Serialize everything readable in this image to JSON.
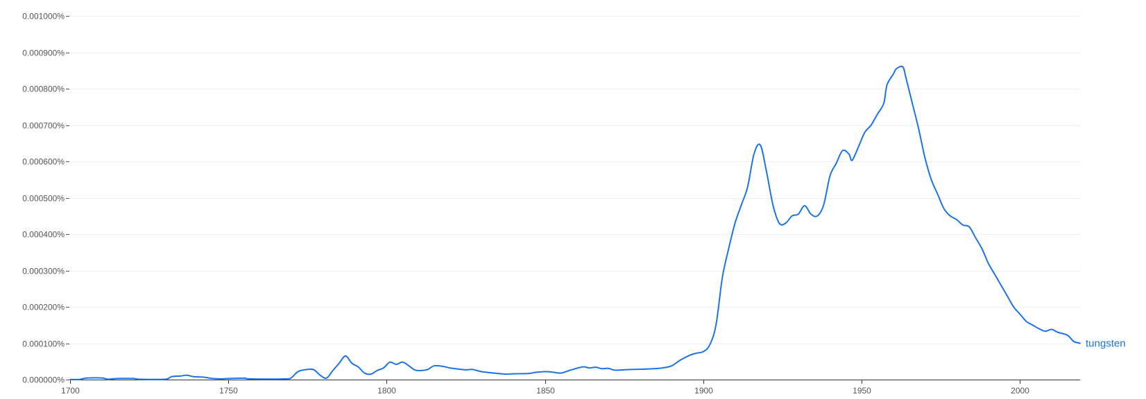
{
  "chart_data": {
    "type": "line",
    "title": "",
    "xlabel": "",
    "ylabel": "",
    "xlim": [
      1700,
      2019
    ],
    "ylim": [
      0,
      0.001
    ],
    "grid": true,
    "legend": "inline-end-of-line",
    "x_ticks": [
      {
        "value": 1700,
        "label": "1700"
      },
      {
        "value": 1750,
        "label": "1750"
      },
      {
        "value": 1800,
        "label": "1800"
      },
      {
        "value": 1850,
        "label": "1850"
      },
      {
        "value": 1900,
        "label": "1900"
      },
      {
        "value": 1950,
        "label": "1950"
      },
      {
        "value": 2000,
        "label": "2000"
      }
    ],
    "y_ticks": [
      {
        "value": 0,
        "label": "0.000000%"
      },
      {
        "value": 0.0001,
        "label": "0.000100%"
      },
      {
        "value": 0.0002,
        "label": "0.000200%"
      },
      {
        "value": 0.0003,
        "label": "0.000300%"
      },
      {
        "value": 0.0004,
        "label": "0.000400%"
      },
      {
        "value": 0.0005,
        "label": "0.000500%"
      },
      {
        "value": 0.0006,
        "label": "0.000600%"
      },
      {
        "value": 0.0007,
        "label": "0.000700%"
      },
      {
        "value": 0.0008,
        "label": "0.000800%"
      },
      {
        "value": 0.0009,
        "label": "0.000900%"
      },
      {
        "value": 0.001,
        "label": "0.001000%"
      }
    ],
    "series": [
      {
        "name": "tungsten",
        "color": "#1a73e8",
        "points": [
          [
            1700,
            2e-07
          ],
          [
            1703,
            3e-07
          ],
          [
            1705,
            4e-06
          ],
          [
            1710,
            4.5e-06
          ],
          [
            1712,
            1e-06
          ],
          [
            1715,
            3e-06
          ],
          [
            1720,
            3e-06
          ],
          [
            1722,
            1e-06
          ],
          [
            1730,
            1e-06
          ],
          [
            1732,
            8e-06
          ],
          [
            1735,
            1e-05
          ],
          [
            1737,
            1.2e-05
          ],
          [
            1739,
            8e-06
          ],
          [
            1742,
            7e-06
          ],
          [
            1745,
            3e-06
          ],
          [
            1748,
            2e-06
          ],
          [
            1750,
            3e-06
          ],
          [
            1755,
            4e-06
          ],
          [
            1757,
            2e-06
          ],
          [
            1768,
            2e-06
          ],
          [
            1770,
            6e-06
          ],
          [
            1772,
            2.2e-05
          ],
          [
            1775,
            2.8e-05
          ],
          [
            1777,
            2.7e-05
          ],
          [
            1779,
            1.2e-05
          ],
          [
            1781,
            4e-06
          ],
          [
            1783,
            2.5e-05
          ],
          [
            1785,
            4.5e-05
          ],
          [
            1787,
            6.5e-05
          ],
          [
            1789,
            4.5e-05
          ],
          [
            1791,
            3.5e-05
          ],
          [
            1793,
            1.8e-05
          ],
          [
            1795,
            1.5e-05
          ],
          [
            1797,
            2.5e-05
          ],
          [
            1799,
            3.2e-05
          ],
          [
            1801,
            4.8e-05
          ],
          [
            1803,
            4.2e-05
          ],
          [
            1805,
            4.8e-05
          ],
          [
            1807,
            3.8e-05
          ],
          [
            1809,
            2.6e-05
          ],
          [
            1811,
            2.5e-05
          ],
          [
            1813,
            2.8e-05
          ],
          [
            1815,
            3.8e-05
          ],
          [
            1818,
            3.6e-05
          ],
          [
            1820,
            3.2e-05
          ],
          [
            1825,
            2.7e-05
          ],
          [
            1827,
            2.8e-05
          ],
          [
            1830,
            2.2e-05
          ],
          [
            1835,
            1.7e-05
          ],
          [
            1838,
            1.5e-05
          ],
          [
            1840,
            1.6e-05
          ],
          [
            1845,
            1.7e-05
          ],
          [
            1847,
            2e-05
          ],
          [
            1850,
            2.2e-05
          ],
          [
            1852,
            2.1e-05
          ],
          [
            1855,
            1.8e-05
          ],
          [
            1858,
            2.6e-05
          ],
          [
            1862,
            3.5e-05
          ],
          [
            1864,
            3.2e-05
          ],
          [
            1866,
            3.4e-05
          ],
          [
            1868,
            3e-05
          ],
          [
            1870,
            3.1e-05
          ],
          [
            1872,
            2.6e-05
          ],
          [
            1875,
            2.7e-05
          ],
          [
            1878,
            2.8e-05
          ],
          [
            1882,
            2.9e-05
          ],
          [
            1887,
            3.2e-05
          ],
          [
            1890,
            3.8e-05
          ],
          [
            1893,
            5.5e-05
          ],
          [
            1896,
            6.8e-05
          ],
          [
            1898,
            7.3e-05
          ],
          [
            1900,
            7.7e-05
          ],
          [
            1902,
            9.5e-05
          ],
          [
            1904,
            0.00015
          ],
          [
            1906,
            0.00028
          ],
          [
            1908,
            0.00036
          ],
          [
            1910,
            0.00043
          ],
          [
            1912,
            0.00048
          ],
          [
            1914,
            0.00053
          ],
          [
            1916,
            0.00062
          ],
          [
            1918,
            0.000645
          ],
          [
            1920,
            0.00057
          ],
          [
            1922,
            0.00048
          ],
          [
            1924,
            0.00043
          ],
          [
            1926,
            0.00043
          ],
          [
            1928,
            0.00045
          ],
          [
            1930,
            0.000455
          ],
          [
            1932,
            0.000478
          ],
          [
            1934,
            0.000455
          ],
          [
            1936,
            0.00045
          ],
          [
            1938,
            0.00048
          ],
          [
            1940,
            0.00056
          ],
          [
            1942,
            0.000595
          ],
          [
            1944,
            0.00063
          ],
          [
            1946,
            0.00062
          ],
          [
            1947,
            0.000603
          ],
          [
            1949,
            0.00064
          ],
          [
            1951,
            0.00068
          ],
          [
            1953,
            0.0007
          ],
          [
            1955,
            0.00073
          ],
          [
            1957,
            0.00076
          ],
          [
            1958,
            0.00081
          ],
          [
            1960,
            0.00084
          ],
          [
            1961,
            0.000855
          ],
          [
            1963,
            0.00086
          ],
          [
            1964,
            0.00083
          ],
          [
            1966,
            0.00076
          ],
          [
            1968,
            0.00069
          ],
          [
            1970,
            0.00061
          ],
          [
            1972,
            0.00055
          ],
          [
            1974,
            0.00051
          ],
          [
            1976,
            0.00047
          ],
          [
            1978,
            0.00045
          ],
          [
            1980,
            0.00044
          ],
          [
            1982,
            0.000425
          ],
          [
            1984,
            0.00042
          ],
          [
            1986,
            0.00039
          ],
          [
            1988,
            0.00036
          ],
          [
            1990,
            0.00032
          ],
          [
            1992,
            0.00029
          ],
          [
            1994,
            0.00026
          ],
          [
            1996,
            0.00023
          ],
          [
            1998,
            0.0002
          ],
          [
            2000,
            0.00018
          ],
          [
            2002,
            0.00016
          ],
          [
            2004,
            0.00015
          ],
          [
            2006,
            0.00014
          ],
          [
            2008,
            0.000133
          ],
          [
            2010,
            0.000138
          ],
          [
            2012,
            0.00013
          ],
          [
            2015,
            0.000122
          ],
          [
            2017,
            0.000105
          ],
          [
            2019,
            0.0001
          ]
        ]
      }
    ]
  }
}
